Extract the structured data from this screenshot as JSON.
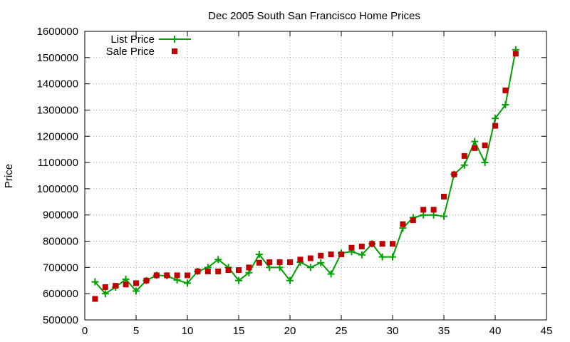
{
  "chart_data": {
    "type": "line",
    "title": "Dec 2005 South San Francisco Home Prices",
    "xlabel": "",
    "ylabel": "Price",
    "xlim": [
      0,
      45
    ],
    "ylim": [
      500000,
      1600000
    ],
    "x_ticks": [
      "0",
      "5",
      "10",
      "15",
      "20",
      "25",
      "30",
      "35",
      "40",
      "45"
    ],
    "y_ticks": [
      "500000",
      "600000",
      "700000",
      "800000",
      "900000",
      "1000000",
      "1100000",
      "1200000",
      "1300000",
      "1400000",
      "1500000",
      "1600000"
    ],
    "grid": true,
    "legend_position": "top-left",
    "series": [
      {
        "name": "List Price",
        "style": "line-with-plus-markers",
        "color": "#00a000",
        "x": [
          1,
          2,
          3,
          4,
          5,
          6,
          7,
          8,
          9,
          10,
          11,
          12,
          13,
          14,
          15,
          16,
          17,
          18,
          19,
          20,
          21,
          22,
          23,
          24,
          25,
          26,
          27,
          28,
          29,
          30,
          31,
          32,
          33,
          34,
          35,
          36,
          37,
          38,
          39,
          40,
          41,
          42
        ],
        "values": [
          645000,
          600000,
          625000,
          655000,
          610000,
          650000,
          670000,
          668000,
          652000,
          640000,
          685000,
          700000,
          730000,
          700000,
          650000,
          680000,
          750000,
          700000,
          700000,
          650000,
          720000,
          700000,
          718000,
          675000,
          755000,
          760000,
          748000,
          790000,
          740000,
          740000,
          850000,
          890000,
          900000,
          900000,
          895000,
          1055000,
          1090000,
          1180000,
          1100000,
          1268000,
          1320000,
          1530000
        ]
      },
      {
        "name": "Sale Price",
        "style": "square-markers",
        "color": "#c00000",
        "x": [
          1,
          2,
          3,
          4,
          5,
          6,
          7,
          8,
          9,
          10,
          11,
          12,
          13,
          14,
          15,
          16,
          17,
          18,
          19,
          20,
          21,
          22,
          23,
          24,
          25,
          26,
          27,
          28,
          29,
          30,
          31,
          32,
          33,
          34,
          35,
          36,
          37,
          38,
          39,
          40,
          41,
          42
        ],
        "values": [
          580000,
          625000,
          630000,
          635000,
          640000,
          650000,
          670000,
          670000,
          670000,
          670000,
          685000,
          685000,
          685000,
          690000,
          690000,
          700000,
          718000,
          720000,
          720000,
          720000,
          730000,
          735000,
          745000,
          750000,
          750000,
          775000,
          780000,
          790000,
          790000,
          790000,
          865000,
          880000,
          920000,
          920000,
          970000,
          1055000,
          1125000,
          1155000,
          1165000,
          1240000,
          1375000,
          1515000
        ]
      }
    ]
  }
}
